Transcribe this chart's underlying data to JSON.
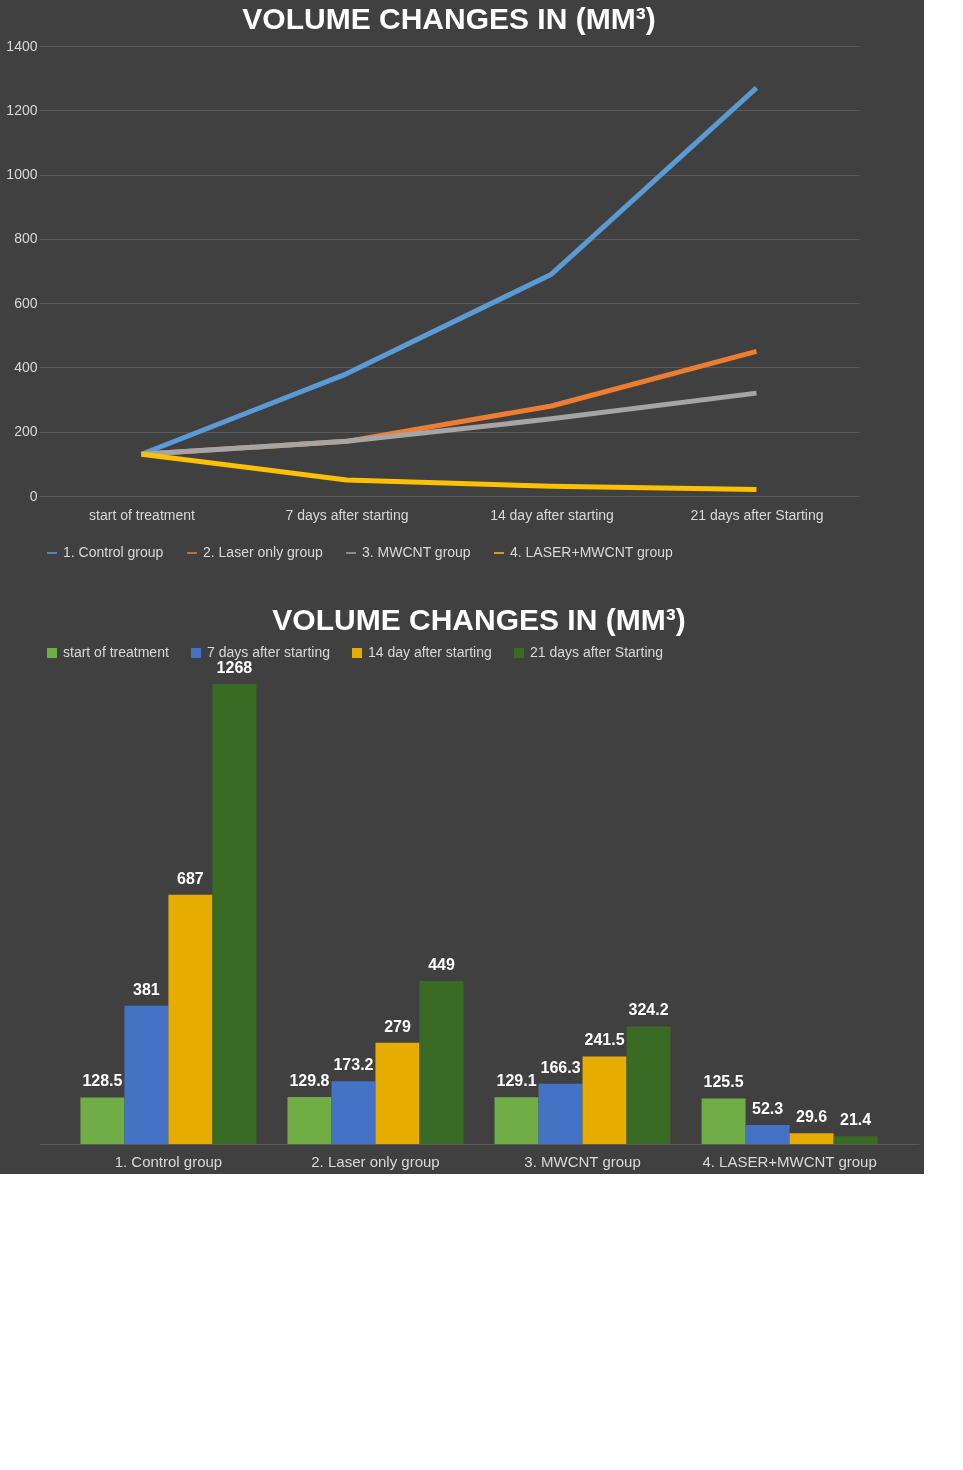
{
  "chart_data": [
    {
      "type": "line",
      "title": "VOLUME CHANGES IN (MM³)",
      "categories": [
        "start of treatment",
        "7 days after starting",
        "14 day after starting",
        "21 days after Starting"
      ],
      "series": [
        {
          "name": "1. Control group",
          "color": "#5b9bd5",
          "values": [
            130,
            380,
            690,
            1270
          ]
        },
        {
          "name": "2. Laser only group",
          "color": "#ed7d31",
          "values": [
            130,
            170,
            280,
            450
          ]
        },
        {
          "name": "3. MWCNT group",
          "color": "#a5a5a5",
          "values": [
            130,
            170,
            240,
            320
          ]
        },
        {
          "name": "4. LASER+MWCNT group",
          "color": "#ffc000",
          "values": [
            130,
            50,
            30,
            20
          ]
        }
      ],
      "ylim": [
        0,
        1400
      ],
      "yticks": [
        0,
        200,
        400,
        600,
        800,
        1000,
        1200,
        1400
      ],
      "grid": "y",
      "legend": "bottom",
      "marker": "none",
      "line_style": "solid"
    },
    {
      "type": "bar",
      "title": "VOLUME CHANGES IN (MM³)",
      "categories": [
        "1. Control group",
        "2. Laser only group",
        "3. MWCNT group",
        "4. LASER+MWCNT group"
      ],
      "series": [
        {
          "name": "start of treatment",
          "color": "#70ad47",
          "values": [
            128.5,
            129.8,
            129.1,
            125.5
          ]
        },
        {
          "name": "7 days after starting",
          "color": "#4472c4",
          "values": [
            381,
            173.2,
            166.3,
            52.3
          ]
        },
        {
          "name": "14 day after starting",
          "color": "#e6ac00",
          "values": [
            687,
            279,
            241.5,
            29.6
          ]
        },
        {
          "name": "21 days after Starting",
          "color": "#3a6b24",
          "values": [
            1268,
            449,
            324.2,
            21.4
          ]
        }
      ],
      "data_labels": true,
      "legend": "top",
      "grid": false
    }
  ]
}
